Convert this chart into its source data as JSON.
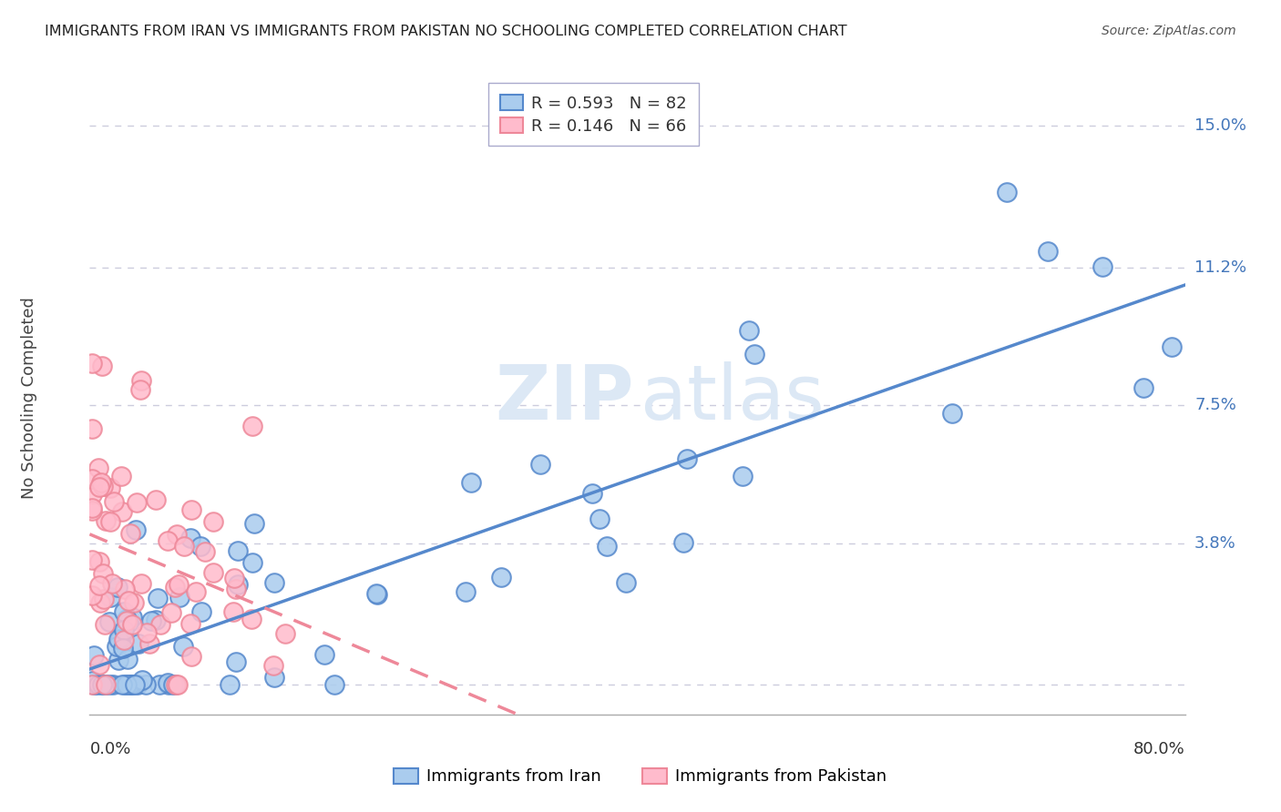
{
  "title": "IMMIGRANTS FROM IRAN VS IMMIGRANTS FROM PAKISTAN NO SCHOOLING COMPLETED CORRELATION CHART",
  "source": "Source: ZipAtlas.com",
  "ylabel": "No Schooling Completed",
  "xmin": 0.0,
  "xmax": 0.8,
  "ymin": -0.008,
  "ymax": 0.162,
  "iran_color": "#5588CC",
  "iran_color_fill": "#AACCEE",
  "pakistan_color": "#EE8899",
  "pakistan_color_fill": "#FFBBCC",
  "iran_R": 0.593,
  "iran_N": 82,
  "pakistan_R": 0.146,
  "pakistan_N": 66,
  "legend_iran_label": "R = 0.593   N = 82",
  "legend_pakistan_label": "R = 0.146   N = 66",
  "legend_bottom_iran": "Immigrants from Iran",
  "legend_bottom_pakistan": "Immigrants from Pakistan",
  "background_color": "#FFFFFF",
  "grid_color": "#CCCCDD",
  "ytick_vals": [
    0.0,
    0.038,
    0.075,
    0.112,
    0.15
  ],
  "ytick_labels": [
    "",
    "3.8%",
    "7.5%",
    "11.2%",
    "15.0%"
  ],
  "title_fontsize": 11.5,
  "axis_fontsize": 13,
  "legend_fontsize": 13,
  "watermark_color": "#DCE8F5"
}
